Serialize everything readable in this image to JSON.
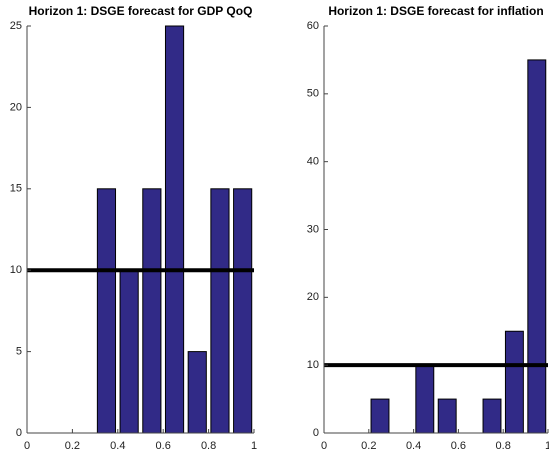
{
  "chart_data": [
    {
      "type": "bar",
      "title": "Horizon 1: DSGE forecast for GDP QoQ",
      "x": [
        0.05,
        0.15,
        0.25,
        0.35,
        0.45,
        0.55,
        0.65,
        0.75,
        0.85,
        0.95
      ],
      "values": [
        0,
        0,
        0,
        15,
        10,
        15,
        25,
        5,
        15,
        15
      ],
      "color": "#312a87",
      "hline": 10,
      "xlim": [
        0,
        1
      ],
      "xticks": [
        0,
        0.2,
        0.4,
        0.6,
        0.8,
        1
      ],
      "ylim": [
        0,
        25
      ],
      "yticks": [
        0,
        5,
        10,
        15,
        20,
        25
      ]
    },
    {
      "type": "bar",
      "title": "Horizon 1: DSGE forecast for inflation",
      "x": [
        0.05,
        0.15,
        0.25,
        0.35,
        0.45,
        0.55,
        0.65,
        0.75,
        0.85,
        0.95
      ],
      "values": [
        0,
        0,
        5,
        0,
        10,
        5,
        0,
        5,
        15,
        55
      ],
      "color": "#312a87",
      "hline": 10,
      "xlim": [
        0,
        1
      ],
      "xticks": [
        0,
        0.2,
        0.4,
        0.6,
        0.8,
        1
      ],
      "ylim": [
        0,
        60
      ],
      "yticks": [
        0,
        10,
        20,
        30,
        40,
        50,
        60
      ]
    }
  ]
}
